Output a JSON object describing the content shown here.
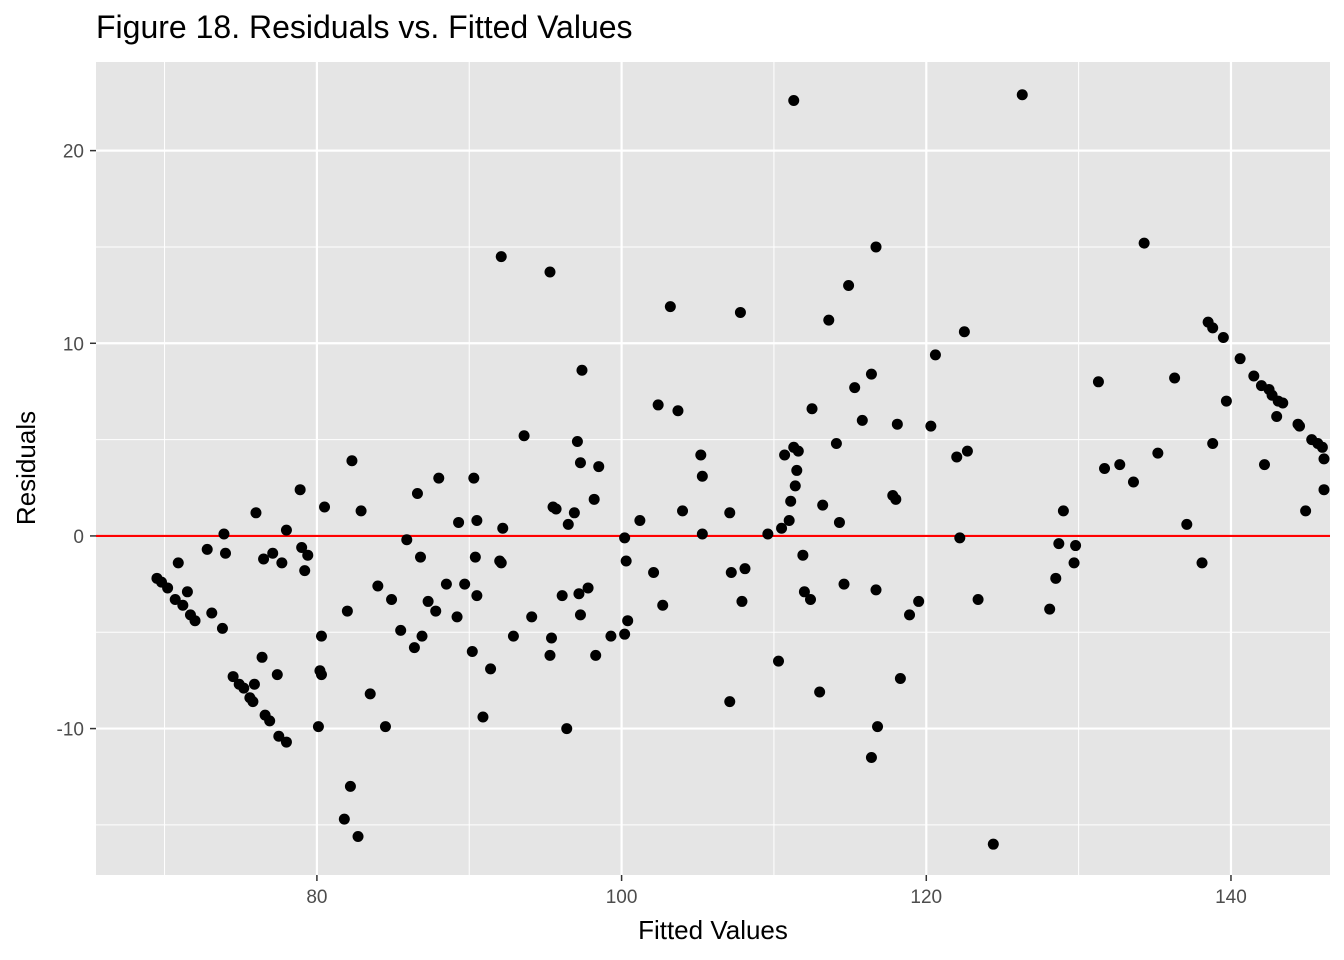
{
  "chart_data": {
    "type": "scatter",
    "title": "Figure 18. Residuals vs. Fitted Values",
    "xlabel": "Fitted Values",
    "ylabel": "Residuals",
    "xlim": [
      65.5,
      146.5
    ],
    "ylim": [
      -17.6,
      24.6
    ],
    "x_ticks": [
      80,
      100,
      120,
      140
    ],
    "x_tick_labels": [
      "80",
      "100",
      "120",
      "140"
    ],
    "y_ticks": [
      -10,
      0,
      10,
      20
    ],
    "y_tick_labels": [
      "-10",
      "0",
      "10",
      "20"
    ],
    "grid": true,
    "legend": "none",
    "reference_line": {
      "y": 0,
      "color": "#ff0000"
    },
    "colors": {
      "panel": "#e5e5e5",
      "grid": "#ffffff",
      "point": "#000000",
      "tick": "#333333",
      "tick_label": "#4d4d4d"
    },
    "points": [
      [
        69.5,
        -2.2
      ],
      [
        69.8,
        -2.4
      ],
      [
        70.2,
        -2.7
      ],
      [
        70.7,
        -3.3
      ],
      [
        70.9,
        -1.4
      ],
      [
        71.2,
        -3.6
      ],
      [
        71.5,
        -2.9
      ],
      [
        71.7,
        -4.1
      ],
      [
        72.0,
        -4.4
      ],
      [
        72.8,
        -0.7
      ],
      [
        73.1,
        -4.0
      ],
      [
        73.8,
        -4.8
      ],
      [
        73.9,
        0.1
      ],
      [
        74.0,
        -0.9
      ],
      [
        74.5,
        -7.3
      ],
      [
        74.9,
        -7.7
      ],
      [
        75.2,
        -7.9
      ],
      [
        75.6,
        -8.4
      ],
      [
        75.8,
        -8.6
      ],
      [
        75.9,
        -7.7
      ],
      [
        76.0,
        1.2
      ],
      [
        76.4,
        -6.3
      ],
      [
        76.5,
        -1.2
      ],
      [
        76.6,
        -9.3
      ],
      [
        76.9,
        -9.6
      ],
      [
        77.1,
        -0.9
      ],
      [
        77.4,
        -7.2
      ],
      [
        77.5,
        -10.4
      ],
      [
        77.7,
        -1.4
      ],
      [
        78.0,
        -10.7
      ],
      [
        78.0,
        0.3
      ],
      [
        78.9,
        2.4
      ],
      [
        79.0,
        -0.6
      ],
      [
        79.2,
        -1.8
      ],
      [
        79.4,
        -1.0
      ],
      [
        80.1,
        -9.9
      ],
      [
        80.2,
        -7.0
      ],
      [
        80.3,
        -7.2
      ],
      [
        80.3,
        -5.2
      ],
      [
        80.5,
        1.5
      ],
      [
        81.8,
        -14.7
      ],
      [
        82.0,
        -3.9
      ],
      [
        82.2,
        -13.0
      ],
      [
        82.3,
        3.9
      ],
      [
        82.7,
        -15.6
      ],
      [
        82.9,
        1.3
      ],
      [
        83.5,
        -8.2
      ],
      [
        84.0,
        -2.6
      ],
      [
        84.5,
        -9.9
      ],
      [
        84.9,
        -3.3
      ],
      [
        85.5,
        -4.9
      ],
      [
        85.9,
        -0.2
      ],
      [
        86.4,
        -5.8
      ],
      [
        86.6,
        2.2
      ],
      [
        86.8,
        -1.1
      ],
      [
        86.9,
        -5.2
      ],
      [
        87.3,
        -3.4
      ],
      [
        87.8,
        -3.9
      ],
      [
        88.0,
        3.0
      ],
      [
        88.5,
        -2.5
      ],
      [
        89.2,
        -4.2
      ],
      [
        89.3,
        0.7
      ],
      [
        89.7,
        -2.5
      ],
      [
        90.2,
        -6.0
      ],
      [
        90.3,
        3.0
      ],
      [
        90.4,
        -1.1
      ],
      [
        90.5,
        0.8
      ],
      [
        90.5,
        -3.1
      ],
      [
        90.9,
        -9.4
      ],
      [
        91.4,
        -6.9
      ],
      [
        92.0,
        -1.3
      ],
      [
        92.1,
        -1.4
      ],
      [
        92.2,
        0.4
      ],
      [
        92.1,
        14.5
      ],
      [
        92.9,
        -5.2
      ],
      [
        93.6,
        5.2
      ],
      [
        94.1,
        -4.2
      ],
      [
        95.3,
        -6.2
      ],
      [
        95.4,
        -5.3
      ],
      [
        95.3,
        13.7
      ],
      [
        95.5,
        1.5
      ],
      [
        95.7,
        1.4
      ],
      [
        96.1,
        -3.1
      ],
      [
        96.4,
        -10.0
      ],
      [
        96.5,
        0.6
      ],
      [
        96.9,
        1.2
      ],
      [
        97.1,
        4.9
      ],
      [
        97.2,
        -3.0
      ],
      [
        97.3,
        -4.1
      ],
      [
        97.3,
        3.8
      ],
      [
        97.4,
        8.6
      ],
      [
        97.8,
        -2.7
      ],
      [
        98.2,
        1.9
      ],
      [
        98.3,
        -6.2
      ],
      [
        98.5,
        3.6
      ],
      [
        99.3,
        -5.2
      ],
      [
        100.2,
        -5.1
      ],
      [
        100.2,
        -0.1
      ],
      [
        100.3,
        -1.3
      ],
      [
        100.4,
        -4.4
      ],
      [
        101.2,
        0.8
      ],
      [
        102.1,
        -1.9
      ],
      [
        102.4,
        6.8
      ],
      [
        102.7,
        -3.6
      ],
      [
        103.2,
        11.9
      ],
      [
        103.7,
        6.5
      ],
      [
        104.0,
        1.3
      ],
      [
        105.2,
        4.2
      ],
      [
        105.3,
        3.1
      ],
      [
        105.3,
        0.1
      ],
      [
        107.1,
        -8.6
      ],
      [
        107.1,
        1.2
      ],
      [
        107.2,
        -1.9
      ],
      [
        107.8,
        11.6
      ],
      [
        107.9,
        -3.4
      ],
      [
        108.1,
        -1.7
      ],
      [
        109.6,
        0.1
      ],
      [
        110.3,
        -6.5
      ],
      [
        110.5,
        0.4
      ],
      [
        110.7,
        4.2
      ],
      [
        111.0,
        0.8
      ],
      [
        111.1,
        1.8
      ],
      [
        111.3,
        4.6
      ],
      [
        111.4,
        2.6
      ],
      [
        111.5,
        3.4
      ],
      [
        111.6,
        4.4
      ],
      [
        111.9,
        -1.0
      ],
      [
        112.0,
        -2.9
      ],
      [
        112.4,
        -3.3
      ],
      [
        112.5,
        6.6
      ],
      [
        113.0,
        -8.1
      ],
      [
        113.2,
        1.6
      ],
      [
        113.6,
        11.2
      ],
      [
        114.1,
        4.8
      ],
      [
        114.3,
        0.7
      ],
      [
        114.6,
        -2.5
      ],
      [
        114.9,
        13.0
      ],
      [
        115.3,
        7.7
      ],
      [
        115.8,
        6.0
      ],
      [
        116.4,
        8.4
      ],
      [
        116.4,
        -11.5
      ],
      [
        116.7,
        -2.8
      ],
      [
        116.8,
        -9.9
      ],
      [
        116.7,
        15.0
      ],
      [
        117.8,
        2.1
      ],
      [
        118.0,
        1.9
      ],
      [
        118.1,
        5.8
      ],
      [
        118.3,
        -7.4
      ],
      [
        118.9,
        -4.1
      ],
      [
        119.5,
        -3.4
      ],
      [
        120.3,
        5.7
      ],
      [
        120.6,
        9.4
      ],
      [
        122.0,
        4.1
      ],
      [
        122.2,
        -0.1
      ],
      [
        122.5,
        10.6
      ],
      [
        122.7,
        4.4
      ],
      [
        123.4,
        -3.3
      ],
      [
        124.4,
        -16.0
      ],
      [
        126.3,
        22.9
      ],
      [
        111.3,
        22.6
      ],
      [
        128.1,
        -3.8
      ],
      [
        128.5,
        -2.2
      ],
      [
        128.7,
        -0.4
      ],
      [
        129.0,
        1.3
      ],
      [
        129.7,
        -1.4
      ],
      [
        129.8,
        -0.5
      ],
      [
        131.3,
        8.0
      ],
      [
        131.7,
        3.5
      ],
      [
        132.7,
        3.7
      ],
      [
        133.6,
        2.8
      ],
      [
        134.3,
        15.2
      ],
      [
        135.2,
        4.3
      ],
      [
        136.3,
        8.2
      ],
      [
        137.1,
        0.6
      ],
      [
        138.1,
        -1.4
      ],
      [
        138.5,
        11.1
      ],
      [
        138.8,
        10.8
      ],
      [
        138.8,
        4.8
      ],
      [
        139.5,
        10.3
      ],
      [
        139.7,
        7.0
      ],
      [
        140.6,
        9.2
      ],
      [
        141.5,
        8.3
      ],
      [
        142.0,
        7.8
      ],
      [
        142.2,
        3.7
      ],
      [
        142.5,
        7.6
      ],
      [
        142.7,
        7.3
      ],
      [
        143.0,
        6.2
      ],
      [
        143.1,
        7.0
      ],
      [
        143.4,
        6.9
      ],
      [
        144.4,
        5.8
      ],
      [
        144.5,
        5.7
      ],
      [
        144.9,
        1.3
      ],
      [
        145.3,
        5.0
      ],
      [
        145.7,
        4.8
      ],
      [
        146.0,
        4.6
      ],
      [
        146.6,
        4.0
      ],
      [
        146.2,
        2.4
      ]
    ]
  }
}
